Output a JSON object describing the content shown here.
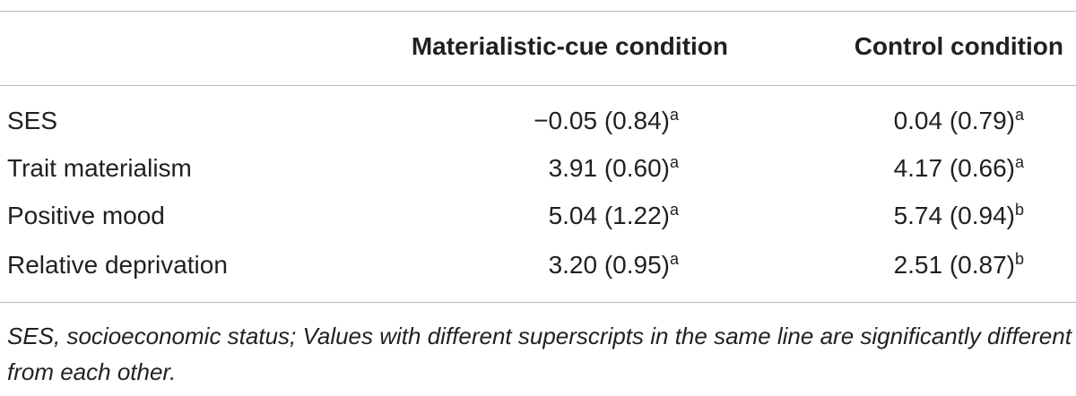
{
  "table": {
    "columns": [
      "Materialistic-cue condition",
      "Control condition"
    ],
    "rows": [
      {
        "label": "SES",
        "cells": [
          {
            "text": "−0.05 (0.84)",
            "sup": "a"
          },
          {
            "text": "0.04 (0.79)",
            "sup": "a"
          }
        ]
      },
      {
        "label": "Trait materialism",
        "cells": [
          {
            "text": "3.91 (0.60)",
            "sup": "a"
          },
          {
            "text": "4.17 (0.66)",
            "sup": "a"
          }
        ]
      },
      {
        "label": "Positive mood",
        "cells": [
          {
            "text": "5.04 (1.22)",
            "sup": "a"
          },
          {
            "text": "5.74 (0.94)",
            "sup": "b"
          }
        ]
      },
      {
        "label": "Relative deprivation",
        "cells": [
          {
            "text": "3.20 (0.95)",
            "sup": "a"
          },
          {
            "text": "2.51 (0.87)",
            "sup": "b"
          }
        ]
      }
    ],
    "footnote": "SES, socioeconomic status; Values with different superscripts in the same line are significantly different from each other."
  }
}
